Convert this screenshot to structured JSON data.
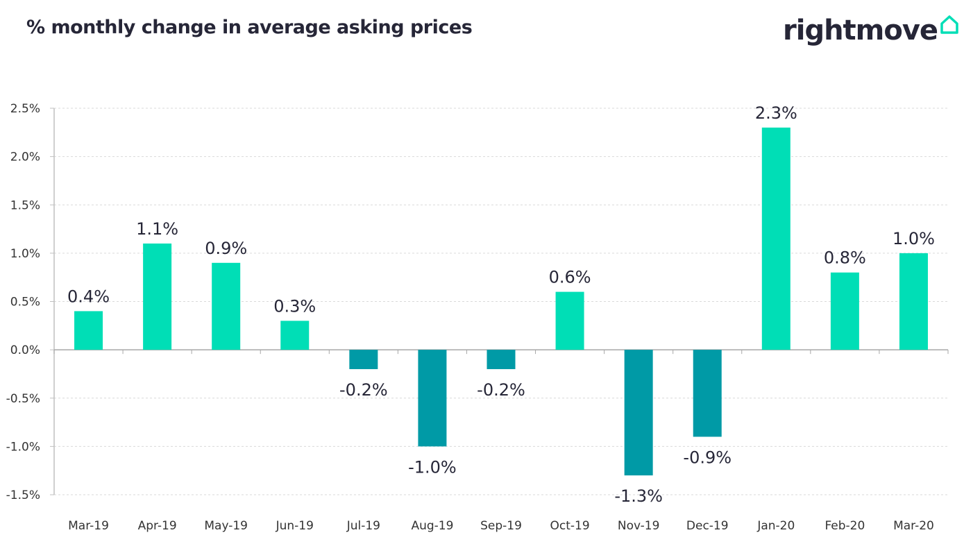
{
  "header": {
    "title": "% monthly change in average asking prices"
  },
  "logo": {
    "text": "rightmove",
    "icon": "house-icon"
  },
  "colors": {
    "positive": "#00deb6",
    "negative": "#009aa6",
    "text": "#262637",
    "grid": "#d9d9d9"
  },
  "chart_data": {
    "type": "bar",
    "title": "% monthly change in average asking prices",
    "categories": [
      "Mar-19",
      "Apr-19",
      "May-19",
      "Jun-19",
      "Jul-19",
      "Aug-19",
      "Sep-19",
      "Oct-19",
      "Nov-19",
      "Dec-19",
      "Jan-20",
      "Feb-20",
      "Mar-20"
    ],
    "values": [
      0.4,
      1.1,
      0.9,
      0.3,
      -0.2,
      -1.0,
      -0.2,
      0.6,
      -1.3,
      -0.9,
      2.3,
      0.8,
      1.0
    ],
    "data_labels": [
      "0.4%",
      "1.1%",
      "0.9%",
      "0.3%",
      "-0.2%",
      "-1.0%",
      "-0.2%",
      "0.6%",
      "-1.3%",
      "-0.9%",
      "2.3%",
      "0.8%",
      "1.0%"
    ],
    "ylim": [
      -1.5,
      2.5
    ],
    "yticks": [
      2.5,
      2.0,
      1.5,
      1.0,
      0.5,
      0.0,
      -0.5,
      -1.0,
      -1.5
    ],
    "ytick_labels": [
      "2.5%",
      "2.0%",
      "1.5%",
      "1.0%",
      "0.5%",
      "0.0%",
      "-0.5%",
      "-1.0%",
      "-1.5%"
    ],
    "xlabel": "",
    "ylabel": "",
    "grid": true,
    "legend": "none"
  }
}
